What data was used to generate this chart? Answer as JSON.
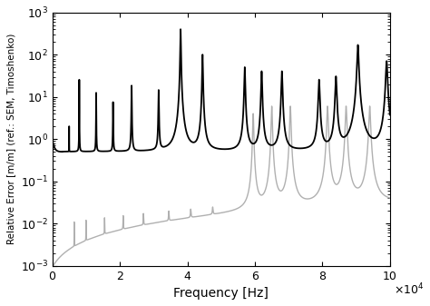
{
  "xlim": [
    0,
    100000
  ],
  "ylim": [
    0.001,
    1000.0
  ],
  "xlabel": "Frequency [Hz]",
  "ylabel": "Relative Error [m/m] (ref.: SEM, Timoshenko)",
  "xticks": [
    0,
    20000,
    40000,
    60000,
    80000,
    100000
  ],
  "xticklabels": [
    "0",
    "2",
    "4",
    "6",
    "8",
    "10"
  ],
  "black_color": "#000000",
  "gray_color": "#b0b0b0",
  "linewidth_black": 1.3,
  "linewidth_gray": 1.0,
  "background": "#ffffff",
  "n_points": 500000,
  "ylabel_fontsize": 7.5,
  "xlabel_fontsize": 10,
  "tick_labelsize": 9
}
